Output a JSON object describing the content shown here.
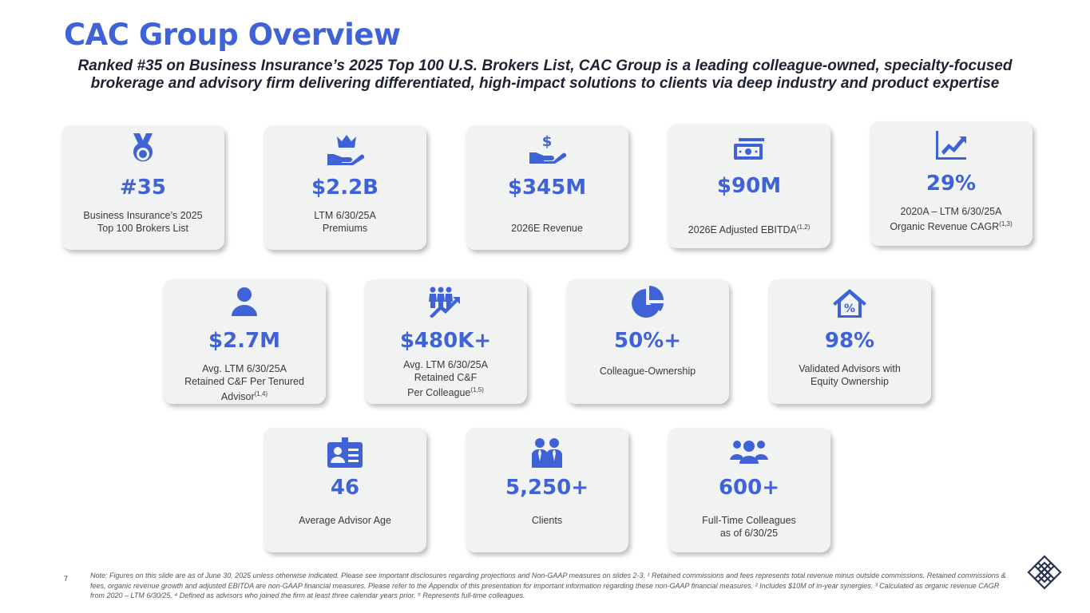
{
  "title": "CAC Group Overview",
  "subtitle": "Ranked #35 on Business Insurance’s 2025 Top 100 U.S. Brokers List, CAC Group is a leading colleague-owned, specialty-focused brokerage and advisory firm delivering differentiated, high-impact solutions to clients via deep industry and product expertise",
  "accent_color": "#3f63d6",
  "cards": [
    {
      "icon": "medal-icon",
      "value": "#35",
      "label_l1": "Business Insurance’s 2025",
      "label_l2": "Top 100 Brokers List"
    },
    {
      "icon": "crown-hand-icon",
      "value": "$2.2B",
      "label_l1": "LTM 6/30/25A",
      "label_l2": "Premiums"
    },
    {
      "icon": "dollar-hand-icon",
      "value": "$345M",
      "label_l1": "2026E Revenue"
    },
    {
      "icon": "cash-icon",
      "value": "$90M",
      "label_l1": "2026E Adjusted EBITDA",
      "label_sup": "(1,2)"
    },
    {
      "icon": "growth-chart-icon",
      "value": "29%",
      "label_l1": "2020A – LTM 6/30/25A",
      "label_l2": "Organic Revenue CAGR",
      "label_sup": "(1,3)"
    },
    {
      "icon": "person-icon",
      "value": "$2.7M",
      "label_l1": "Avg. LTM 6/30/25A",
      "label_l2": "Retained C&F Per Tenured",
      "label_l3": "Advisor",
      "label_sup": "(1,4)"
    },
    {
      "icon": "people-growth-icon",
      "value": "$480K+",
      "label_l1": "Avg. LTM 6/30/25A",
      "label_l2": "Retained C&F",
      "label_l3": "Per Colleague",
      "label_sup": "(1,5)"
    },
    {
      "icon": "pie-chart-icon",
      "value": "50%+",
      "label_l1": "Colleague-Ownership"
    },
    {
      "icon": "house-percent-icon",
      "value": "98%",
      "label_l1": "Validated Advisors with",
      "label_l2": "Equity Ownership"
    },
    {
      "icon": "id-card-icon",
      "value": "46",
      "label_l1": "Average Advisor Age"
    },
    {
      "icon": "clients-icon",
      "value": "5,250+",
      "label_l1": "Clients"
    },
    {
      "icon": "team-icon",
      "value": "600+",
      "label_l1": "Full-Time Colleagues",
      "label_l2": "as of 6/30/25"
    }
  ],
  "page_number": "7",
  "footnote": "Note: Figures on this slide are as of June 30, 2025 unless otherwise indicated. Please see important disclosures regarding projections and Non-GAAP measures on slides 2-3. ¹ Retained commissions and fees represents total revenue minus outside commissions. Retained commissions & fees, organic revenue growth and adjusted EBITDA are non-GAAP financial measures. Please refer to the Appendix of this presentation for important information regarding these non-GAAP financial measures. ² Includes $10M of in-year synergies. ³ Calculated as organic revenue CAGR from 2020 – LTM 6/30/25. ⁴ Defined as advisors who joined the firm at least three calendar years prior. ⁵ Represents full-time colleagues."
}
